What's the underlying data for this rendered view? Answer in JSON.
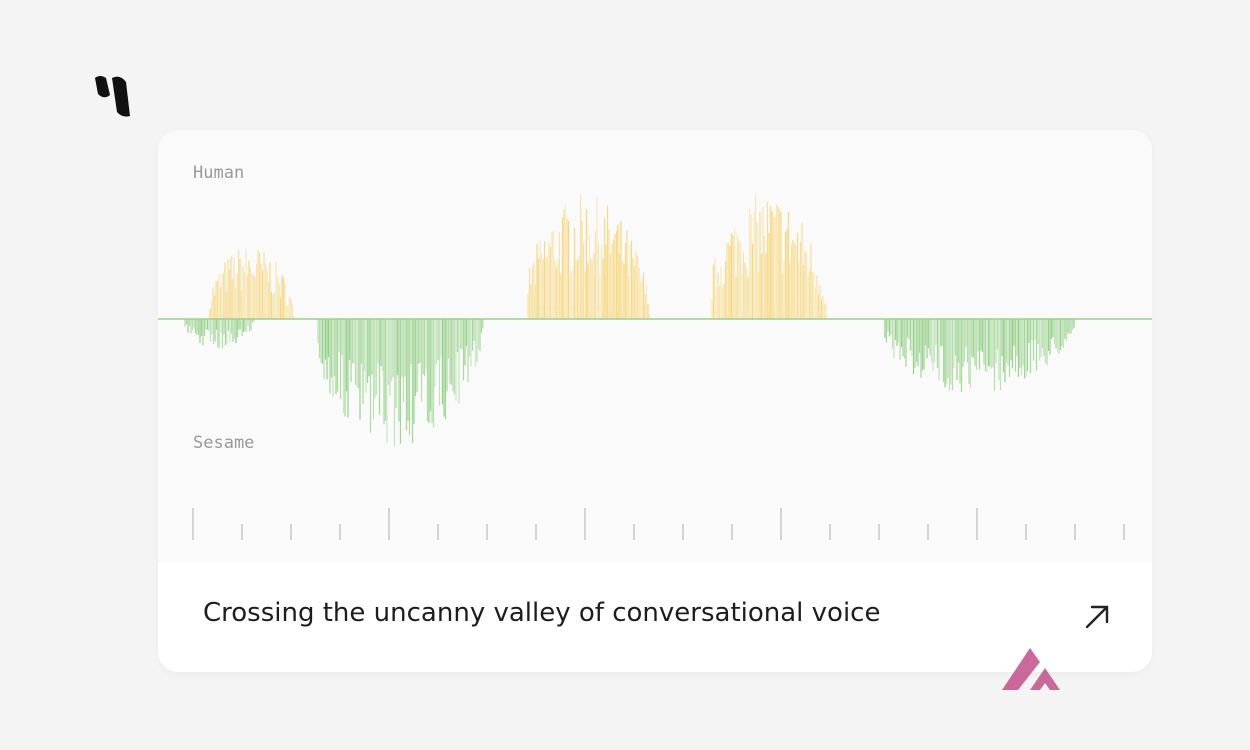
{
  "waveform": {
    "top_label": "Human",
    "bottom_label": "Sesame"
  },
  "card": {
    "title": "Crossing the uncanny valley of conversational voice"
  }
}
